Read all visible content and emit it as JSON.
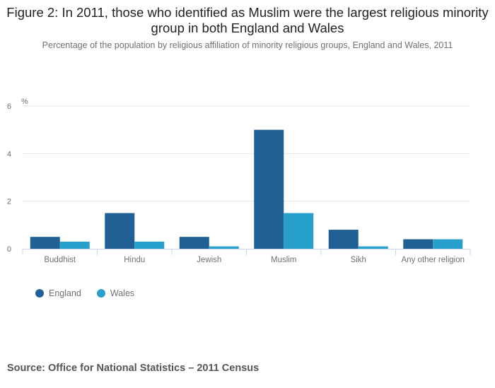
{
  "chart_data": {
    "type": "bar",
    "title": "Figure 2: In 2011, those who identified as Muslim were the largest religious minority group in both England and Wales",
    "subtitle": "Percentage of the population by religious affiliation of minority religious groups, England and Wales, 2011",
    "xlabel": "",
    "ylabel": "%",
    "ylim": [
      0,
      6
    ],
    "yticks": [
      0,
      2,
      4,
      6
    ],
    "grid": true,
    "categories": [
      "Buddhist",
      "Hindu",
      "Jewish",
      "Muslim",
      "Sikh",
      "Any other religion"
    ],
    "series": [
      {
        "name": "England",
        "color": "#206095",
        "values": [
          0.5,
          1.5,
          0.5,
          5.0,
          0.8,
          0.4
        ]
      },
      {
        "name": "Wales",
        "color": "#27a0cc",
        "values": [
          0.3,
          0.3,
          0.1,
          1.5,
          0.1,
          0.4
        ]
      }
    ],
    "legend_position": "bottom-left",
    "source": "Source: Office for National Statistics – 2011 Census"
  }
}
